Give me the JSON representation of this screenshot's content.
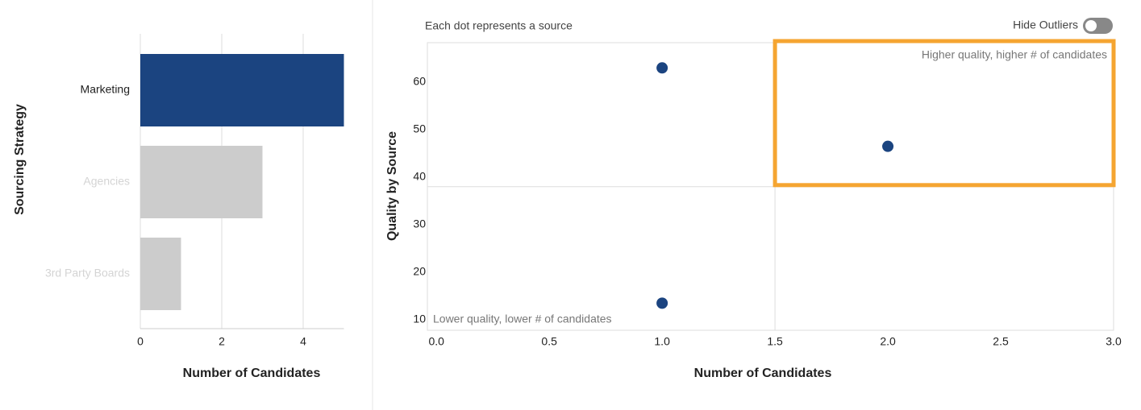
{
  "chart_data": [
    {
      "type": "bar",
      "orientation": "horizontal",
      "y_label": "Sourcing Strategy",
      "x_label": "Number of Candidates",
      "categories": [
        "Marketing",
        "Agencies",
        "3rd Party Boards"
      ],
      "values": [
        5,
        3,
        1
      ],
      "colors": [
        "#1b4480",
        "#cccccc",
        "#cccccc"
      ],
      "label_colors": [
        "#222222",
        "#d4d4d4",
        "#d4d4d4"
      ],
      "xlim": [
        0,
        5
      ],
      "xticks": [
        0,
        2,
        4
      ],
      "grid": true
    },
    {
      "type": "scatter",
      "subtitle": "Each dot represents a source",
      "toggle_label": "Hide Outliers",
      "x_label": "Number of Candidates",
      "y_label": "Quality by Source",
      "x": [
        1.0,
        2.0,
        1.0
      ],
      "values": [
        63,
        46.5,
        13.5
      ],
      "color": "#1b4480",
      "xlim": [
        -0.04,
        3.0
      ],
      "xticks": [
        {
          "value": 0,
          "label": "0.0"
        },
        {
          "value": 0.5,
          "label": "0.5"
        },
        {
          "value": 1,
          "label": "1.0"
        },
        {
          "value": 1.5,
          "label": "1.5"
        },
        {
          "value": 2,
          "label": "2.0"
        },
        {
          "value": 2.5,
          "label": "2.5"
        },
        {
          "value": 3,
          "label": "3.0"
        }
      ],
      "ylim": [
        7.8,
        68.3
      ],
      "yticks": [
        10,
        20,
        30,
        40,
        50,
        60
      ],
      "x_split": 1.5,
      "y_split": 38,
      "highlight_color": "#f5a531",
      "annotations": [
        "Higher quality, higher # of candidates",
        "Lower quality, lower # of candidates"
      ]
    }
  ]
}
